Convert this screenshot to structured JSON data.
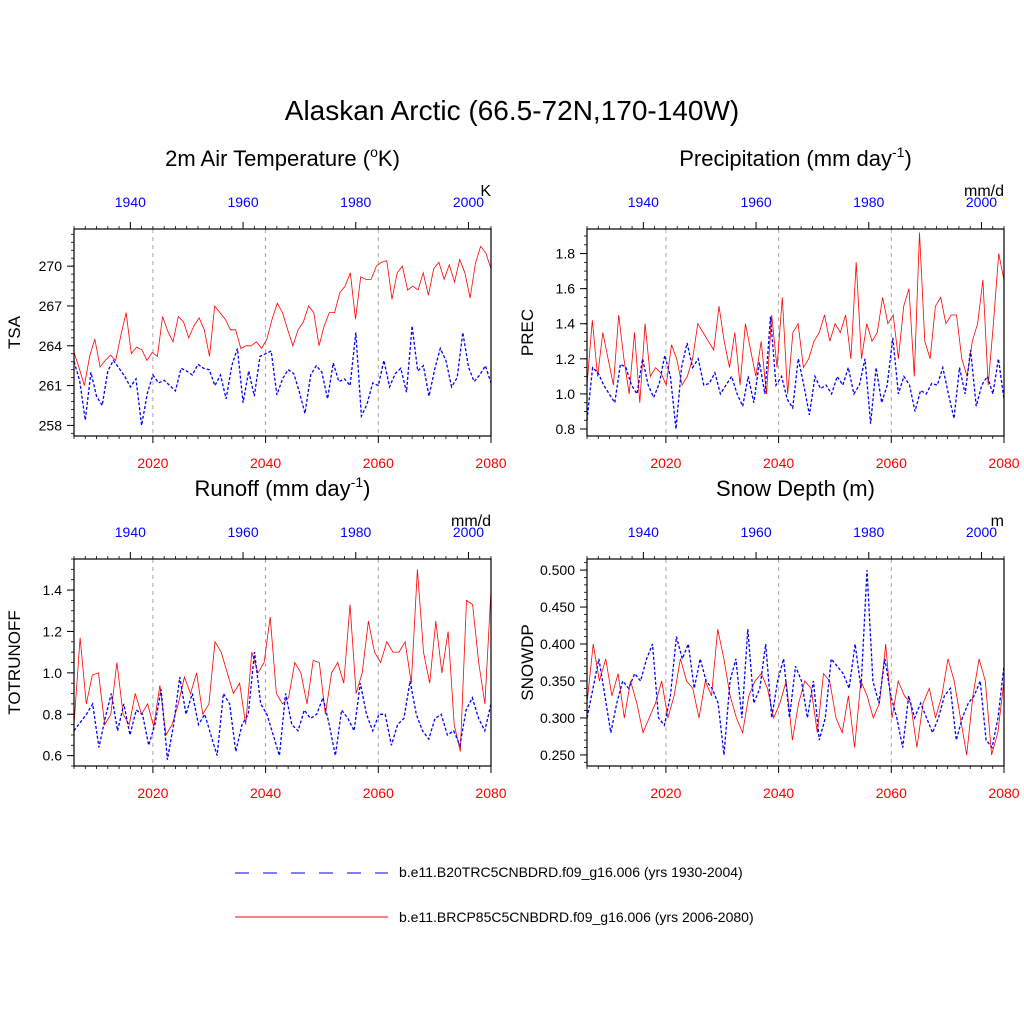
{
  "figure": {
    "title": "Alaskan Arctic (66.5-72N,170-140W)",
    "legend": [
      {
        "label": "b.e11.B20TRC5CNBDRD.f09_g16.006 (yrs 1930-2004)",
        "color": "#0000ff",
        "style": "dashed"
      },
      {
        "label": "b.e11.BRCP85C5CNBDRD.f09_g16.006 (yrs 2006-2080)",
        "color": "#ff0000",
        "style": "solid"
      }
    ],
    "colors": {
      "future": "#ff0000",
      "historical": "#0000ff",
      "grid": "#aaaaaa",
      "axis": "#000000"
    }
  },
  "chart_data": [
    {
      "type": "line",
      "title": "2m Air Temperature (",
      "title_sup": "o",
      "title_after": "K)",
      "ylabel": "TSA",
      "units": "K",
      "ylim": [
        257.2,
        272.8
      ],
      "yticks": [
        258,
        261,
        264,
        267,
        270
      ],
      "yticklabels": [
        "258",
        "261",
        "264",
        "267",
        "270"
      ],
      "ytick_minor": 0.6,
      "x_bottom": {
        "range": [
          2006,
          2080
        ],
        "ticks": [
          2020,
          2040,
          2060,
          2080
        ],
        "labels": [
          "2020",
          "2040",
          "2060",
          "2080"
        ]
      },
      "x_top": {
        "range": [
          1930,
          2004
        ],
        "ticks": [
          1940,
          1960,
          1980,
          2000
        ],
        "labels": [
          "1940",
          "1960",
          "1980",
          "2000"
        ]
      },
      "series": [
        {
          "name": "historical",
          "values": [
            262.8,
            261.4,
            258.4,
            262.0,
            260.2,
            259.5,
            262.1,
            262.9,
            262.3,
            261.7,
            260.9,
            261.5,
            258.0,
            260.4,
            261.8,
            261.2,
            261.4,
            261.0,
            260.6,
            262.3,
            262.1,
            261.8,
            262.6,
            262.3,
            262.2,
            261.0,
            261.8,
            260.0,
            262.5,
            263.8,
            259.7,
            262.1,
            260.2,
            263.2,
            263.4,
            263.6,
            260.3,
            261.5,
            262.2,
            261.9,
            260.5,
            258.9,
            261.8,
            262.5,
            262.0,
            260.0,
            262.7,
            261.3,
            261.5,
            261.0,
            265.0,
            258.7,
            259.6,
            261.2,
            261.0,
            262.9,
            260.9,
            261.9,
            262.3,
            260.5,
            265.5,
            262.1,
            262.5,
            260.2,
            262.2,
            263.8,
            262.9,
            260.9,
            261.6,
            265.0,
            262.4,
            261.3,
            261.8,
            262.5,
            261.2
          ]
        },
        {
          "name": "future",
          "values": [
            263.5,
            262.3,
            261.0,
            263.2,
            264.5,
            262.4,
            262.9,
            263.3,
            262.9,
            264.8,
            266.5,
            263.4,
            263.9,
            263.7,
            262.9,
            263.5,
            263.2,
            266.2,
            265.1,
            264.3,
            266.2,
            265.8,
            264.6,
            265.5,
            266.1,
            265.2,
            263.2,
            267.0,
            266.5,
            266.0,
            265.2,
            265.2,
            263.8,
            264.0,
            264.0,
            264.3,
            263.8,
            264.5,
            266.0,
            267.2,
            266.5,
            265.2,
            264.0,
            265.2,
            265.8,
            267.0,
            266.5,
            264.0,
            265.5,
            266.5,
            266.5,
            268.0,
            268.5,
            269.5,
            266.0,
            269.2,
            269.0,
            269.0,
            270.0,
            270.3,
            270.4,
            267.5,
            269.5,
            270.0,
            268.2,
            268.5,
            268.2,
            269.5,
            267.8,
            269.8,
            270.3,
            269.0,
            270.1,
            268.8,
            270.5,
            269.5,
            267.6,
            270.2,
            271.5,
            271.0,
            269.8
          ]
        }
      ]
    },
    {
      "type": "line",
      "title": "Precipitation (mm day",
      "title_sup": "-1",
      "title_after": ")",
      "ylabel": "PREC",
      "units": "mm/d",
      "ylim": [
        0.76,
        1.94
      ],
      "yticks": [
        0.8,
        1.0,
        1.2,
        1.4,
        1.6,
        1.8
      ],
      "yticklabels": [
        "0.8",
        "1.0",
        "1.2",
        "1.4",
        "1.6",
        "1.8"
      ],
      "ytick_minor": 0.05,
      "x_bottom": {
        "range": [
          2006,
          2080
        ],
        "ticks": [
          2020,
          2040,
          2060,
          2080
        ],
        "labels": [
          "2020",
          "2040",
          "2060",
          "2080"
        ]
      },
      "x_top": {
        "range": [
          1930,
          2004
        ],
        "ticks": [
          1940,
          1960,
          1980,
          2000
        ],
        "labels": [
          "1940",
          "1960",
          "1980",
          "2000"
        ]
      },
      "series": [
        {
          "name": "historical",
          "values": [
            0.85,
            1.15,
            1.12,
            1.05,
            1.0,
            0.95,
            1.17,
            1.15,
            1.05,
            1.0,
            1.2,
            1.05,
            0.98,
            1.06,
            1.22,
            1.1,
            0.8,
            1.15,
            1.29,
            1.15,
            1.2,
            1.05,
            1.06,
            1.12,
            1.0,
            1.05,
            1.1,
            1.0,
            0.93,
            1.1,
            0.95,
            1.18,
            1.0,
            1.44,
            1.05,
            1.1,
            0.97,
            0.92,
            1.2,
            1.05,
            0.88,
            1.1,
            1.03,
            1.05,
            1.0,
            1.1,
            1.05,
            1.15,
            1.0,
            1.05,
            1.2,
            0.83,
            1.15,
            0.95,
            1.05,
            1.32,
            1.0,
            1.1,
            1.05,
            0.9,
            1.02,
            1.0,
            1.06,
            1.05,
            1.15,
            1.0,
            0.86,
            1.15,
            1.0,
            1.25,
            0.93,
            1.05,
            1.1,
            1.0,
            1.2,
            0.97
          ]
        },
        {
          "name": "future",
          "values": [
            1.05,
            1.42,
            1.1,
            1.35,
            1.2,
            1.05,
            1.45,
            1.2,
            1.0,
            1.35,
            0.95,
            1.4,
            1.1,
            1.15,
            1.12,
            1.05,
            1.28,
            1.2,
            1.05,
            1.1,
            1.2,
            1.4,
            1.35,
            1.3,
            1.25,
            1.5,
            1.3,
            1.15,
            1.35,
            1.05,
            1.4,
            1.25,
            1.1,
            1.3,
            1.0,
            1.45,
            1.15,
            1.55,
            1.0,
            1.35,
            1.4,
            1.15,
            1.2,
            1.3,
            1.35,
            1.45,
            1.3,
            1.4,
            1.35,
            1.45,
            1.2,
            1.75,
            1.2,
            1.4,
            1.3,
            1.35,
            1.55,
            1.4,
            1.45,
            1.2,
            1.5,
            1.6,
            1.1,
            1.92,
            1.3,
            1.2,
            1.5,
            1.55,
            1.4,
            1.45,
            1.45,
            1.2,
            1.1,
            1.3,
            1.4,
            1.65,
            1.05,
            1.4,
            1.8,
            1.65
          ]
        }
      ]
    },
    {
      "type": "line",
      "title": "Runoff (mm day",
      "title_sup": "-1",
      "title_after": ")",
      "ylabel": "TOTRUNOFF",
      "units": "mm/d",
      "ylim": [
        0.55,
        1.55
      ],
      "yticks": [
        0.6,
        0.8,
        1.0,
        1.2,
        1.4
      ],
      "yticklabels": [
        "0.6",
        "0.8",
        "1.0",
        "1.2",
        "1.4"
      ],
      "ytick_minor": 0.05,
      "x_bottom": {
        "range": [
          2006,
          2080
        ],
        "ticks": [
          2020,
          2040,
          2060,
          2080
        ],
        "labels": [
          "2020",
          "2040",
          "2060",
          "2080"
        ]
      },
      "x_top": {
        "range": [
          1930,
          2004
        ],
        "ticks": [
          1940,
          1960,
          1980,
          2000
        ],
        "labels": [
          "1940",
          "1960",
          "1980",
          "2000"
        ]
      },
      "series": [
        {
          "name": "historical",
          "values": [
            0.72,
            0.76,
            0.8,
            0.85,
            0.64,
            0.78,
            0.9,
            0.72,
            0.85,
            0.7,
            0.82,
            0.8,
            0.65,
            0.75,
            0.92,
            0.58,
            0.75,
            0.98,
            0.8,
            0.9,
            0.75,
            0.8,
            0.7,
            0.6,
            0.9,
            0.85,
            0.62,
            0.75,
            0.8,
            1.1,
            0.85,
            0.8,
            0.7,
            0.6,
            0.9,
            0.75,
            0.72,
            0.82,
            0.78,
            0.8,
            0.88,
            0.75,
            0.6,
            0.82,
            0.78,
            0.72,
            0.95,
            0.8,
            0.72,
            0.8,
            0.8,
            0.65,
            0.75,
            0.78,
            0.96,
            0.8,
            0.72,
            0.68,
            0.78,
            0.8,
            0.7,
            0.72,
            0.65,
            0.82,
            0.88,
            0.78,
            0.72,
            0.85
          ]
        },
        {
          "name": "future",
          "values": [
            0.75,
            1.17,
            0.85,
            0.99,
            1.0,
            0.75,
            0.8,
            1.05,
            0.8,
            0.75,
            0.9,
            0.8,
            0.85,
            0.74,
            0.94,
            0.7,
            0.75,
            0.85,
            0.98,
            0.9,
            1.0,
            0.8,
            0.85,
            1.15,
            1.1,
            1.0,
            0.9,
            0.95,
            0.75,
            1.1,
            1.0,
            1.05,
            1.27,
            0.9,
            0.85,
            0.88,
            1.05,
            1.0,
            0.85,
            1.06,
            1.05,
            0.8,
            1.0,
            1.05,
            0.95,
            1.33,
            0.9,
            1.0,
            1.25,
            1.1,
            1.05,
            1.15,
            1.1,
            1.1,
            1.15,
            0.95,
            1.5,
            1.1,
            0.95,
            1.25,
            1.0,
            1.2,
            0.75,
            0.62,
            1.35,
            1.33,
            1.05,
            0.85,
            1.4
          ]
        }
      ]
    },
    {
      "type": "line",
      "title": "Snow Depth (m)",
      "title_sup": "",
      "title_after": "",
      "ylabel": "SNOWDP",
      "units": "m",
      "ylim": [
        0.235,
        0.515
      ],
      "yticks": [
        0.25,
        0.3,
        0.35,
        0.4,
        0.45,
        0.5
      ],
      "yticklabels": [
        "0.250",
        "0.300",
        "0.350",
        "0.400",
        "0.450",
        "0.500"
      ],
      "ytick_minor": 0.01,
      "x_bottom": {
        "range": [
          2006,
          2080
        ],
        "ticks": [
          2020,
          2040,
          2060,
          2080
        ],
        "labels": [
          "2020",
          "2040",
          "2060",
          "2080"
        ]
      },
      "x_top": {
        "range": [
          1930,
          2004
        ],
        "ticks": [
          1940,
          1960,
          1980,
          2000
        ],
        "labels": [
          "1940",
          "1960",
          "1980",
          "2000"
        ]
      },
      "series": [
        {
          "name": "historical",
          "values": [
            0.3,
            0.34,
            0.38,
            0.33,
            0.28,
            0.32,
            0.35,
            0.34,
            0.36,
            0.35,
            0.38,
            0.4,
            0.3,
            0.29,
            0.33,
            0.41,
            0.38,
            0.4,
            0.34,
            0.38,
            0.35,
            0.34,
            0.32,
            0.25,
            0.35,
            0.38,
            0.3,
            0.42,
            0.32,
            0.34,
            0.4,
            0.3,
            0.35,
            0.38,
            0.3,
            0.37,
            0.35,
            0.3,
            0.35,
            0.27,
            0.3,
            0.38,
            0.37,
            0.36,
            0.34,
            0.4,
            0.34,
            0.5,
            0.35,
            0.32,
            0.38,
            0.33,
            0.3,
            0.26,
            0.33,
            0.3,
            0.32,
            0.3,
            0.28,
            0.3,
            0.33,
            0.34,
            0.27,
            0.3,
            0.32,
            0.33,
            0.35,
            0.27,
            0.26,
            0.3,
            0.37
          ]
        },
        {
          "name": "future",
          "values": [
            0.32,
            0.4,
            0.35,
            0.38,
            0.33,
            0.36,
            0.3,
            0.35,
            0.32,
            0.28,
            0.3,
            0.32,
            0.35,
            0.3,
            0.33,
            0.38,
            0.35,
            0.34,
            0.3,
            0.35,
            0.33,
            0.42,
            0.38,
            0.33,
            0.3,
            0.28,
            0.33,
            0.35,
            0.36,
            0.34,
            0.3,
            0.32,
            0.35,
            0.27,
            0.32,
            0.35,
            0.34,
            0.28,
            0.36,
            0.35,
            0.3,
            0.28,
            0.33,
            0.26,
            0.35,
            0.33,
            0.3,
            0.32,
            0.4,
            0.3,
            0.35,
            0.33,
            0.32,
            0.26,
            0.32,
            0.34,
            0.3,
            0.33,
            0.38,
            0.35,
            0.3,
            0.25,
            0.33,
            0.38,
            0.35,
            0.25,
            0.28,
            0.35
          ]
        }
      ]
    }
  ]
}
